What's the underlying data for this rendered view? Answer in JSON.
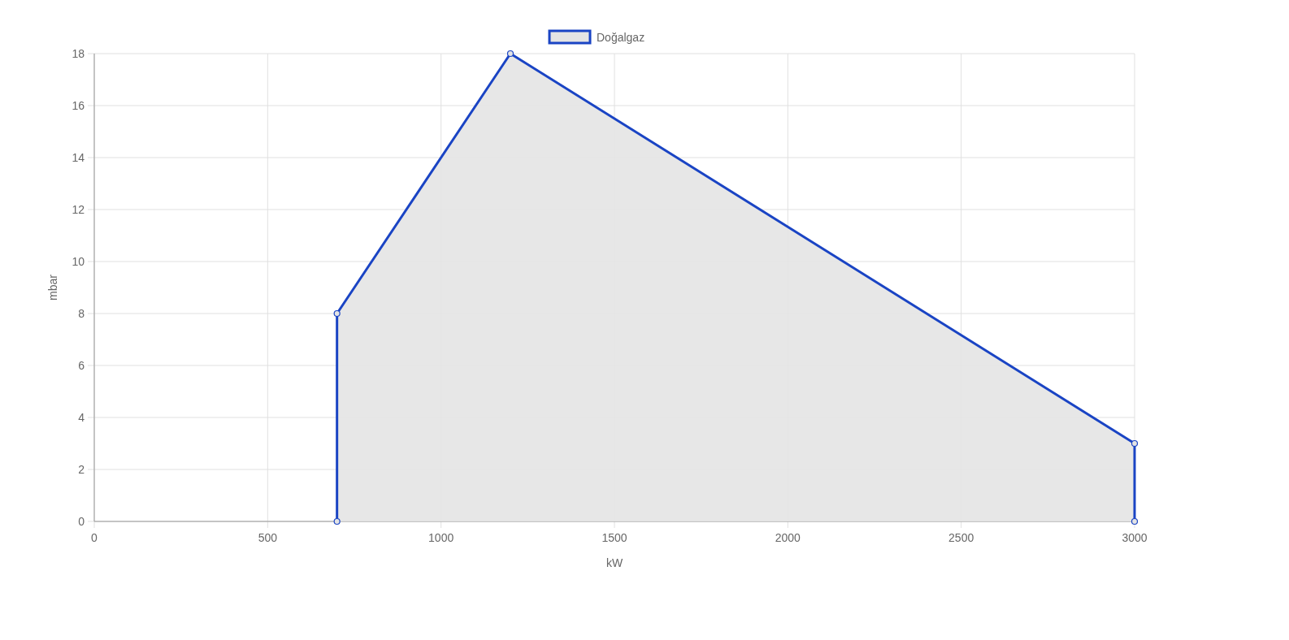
{
  "chart_data": {
    "type": "area",
    "xlabel": "kW",
    "ylabel": "mbar",
    "series": [
      {
        "name": "Doğalgaz",
        "color": "#1a44c4",
        "x": [
          700,
          700,
          1200,
          3000,
          3000
        ],
        "values": [
          0,
          8,
          18,
          3,
          0
        ]
      }
    ],
    "xlim": [
      0,
      3000
    ],
    "xticks": [
      0,
      500,
      1000,
      1500,
      2000,
      2500,
      3000
    ],
    "ylim": [
      0,
      18
    ],
    "yticks": [
      0,
      2,
      4,
      6,
      8,
      10,
      12,
      14,
      16,
      18
    ],
    "grid": true,
    "legend": "top",
    "marker": "circle",
    "line_style": "solid"
  }
}
